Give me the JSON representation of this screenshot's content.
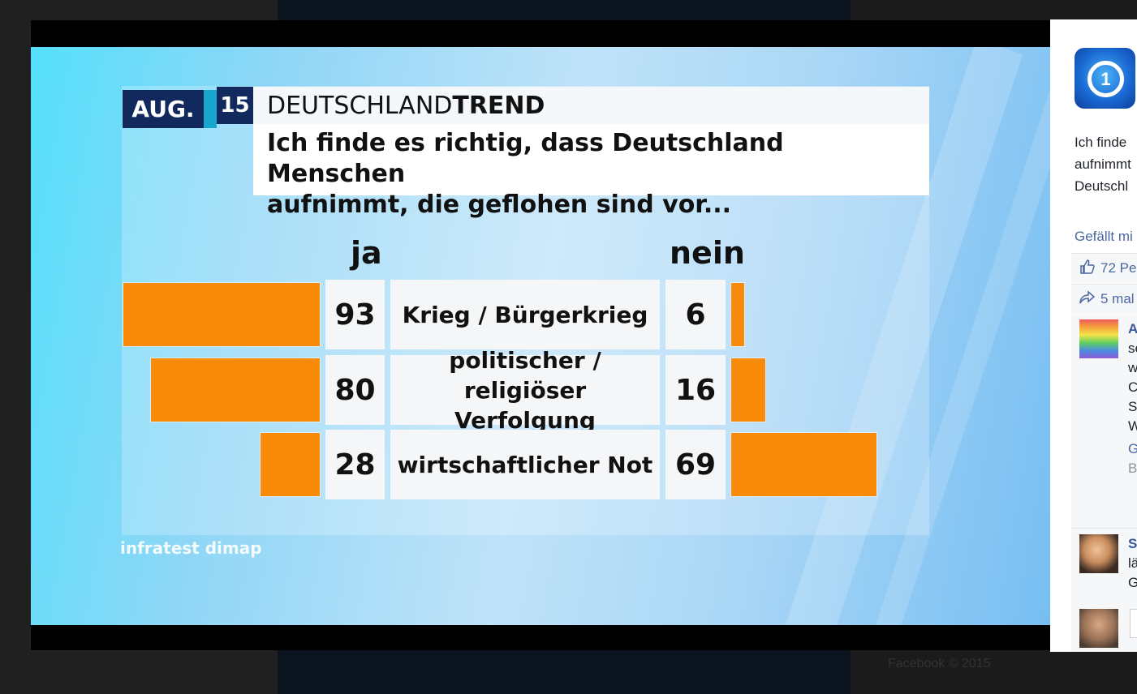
{
  "background": {
    "footer_text": "Facebook © 2015"
  },
  "graphic": {
    "month": "AUG.",
    "year": "15",
    "title_regular": "DEUTSCHLAND",
    "title_bold": "TREND",
    "question_lines": [
      "Ich finde es richtig, dass Deutschland Menschen",
      "aufnimmt, die geflohen sind vor..."
    ],
    "col_yes": "ja",
    "col_no": "nein",
    "source": "infratest dimap"
  },
  "chart_data": {
    "type": "bar",
    "title": "Ich finde es richtig, dass Deutschland Menschen aufnimmt, die geflohen sind vor...",
    "categories": [
      "Krieg / Bürgerkrieg",
      "politischer / religiöser Verfolgung",
      "wirtschaftlicher Not"
    ],
    "category_lines": [
      [
        "Krieg / Bürgerkrieg"
      ],
      [
        "politischer /",
        "religiöser Verfolgung"
      ],
      [
        "wirtschaftlicher Not"
      ]
    ],
    "series": [
      {
        "name": "ja",
        "values": [
          93,
          80,
          28
        ],
        "color": "#f98a0a"
      },
      {
        "name": "nein",
        "values": [
          6,
          16,
          69
        ],
        "color": "#f98a0a"
      }
    ],
    "ylim": [
      0,
      100
    ]
  },
  "sidebar": {
    "post_lines": [
      "Ich finde",
      "aufnimmt",
      "Deutschl"
    ],
    "like_link": "Gefällt mi",
    "likes_text": "72 Pe",
    "shares_text": "5 mal",
    "comment1": {
      "name": "A",
      "lines": [
        "se",
        "w",
        "C",
        "S",
        "W"
      ],
      "link": "G",
      "meta": "B"
    },
    "comment2": {
      "name": "S",
      "lines": [
        "lä",
        "G"
      ]
    }
  },
  "icons": {
    "like": "thumbs-up-icon",
    "share": "share-arrow-icon",
    "page": "tagesschau-logo-icon"
  }
}
